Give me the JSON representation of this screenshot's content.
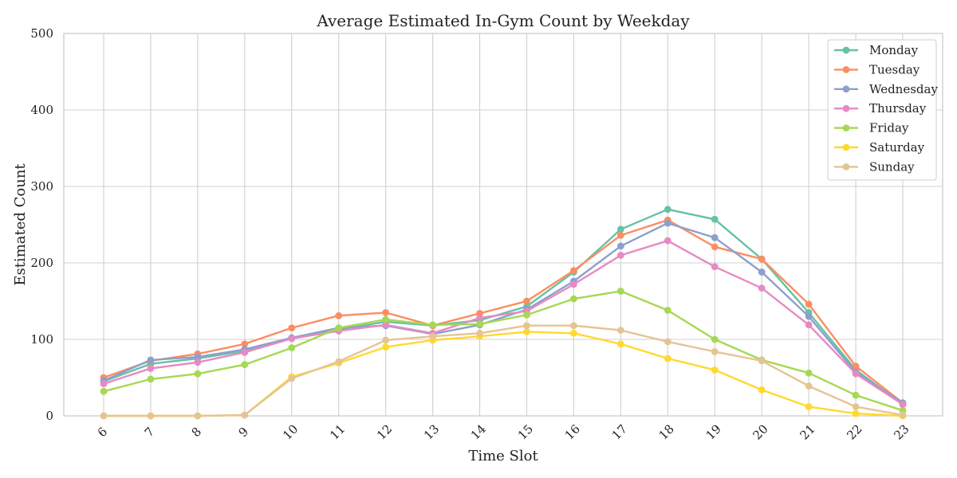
{
  "chart_data": {
    "type": "line",
    "title": "Average Estimated In-Gym Count by Weekday",
    "xlabel": "Time Slot",
    "ylabel": "Estimated Count",
    "x": [
      "6",
      "7",
      "8",
      "9",
      "10",
      "11",
      "12",
      "13",
      "14",
      "15",
      "16",
      "17",
      "18",
      "19",
      "20",
      "21",
      "22",
      "23"
    ],
    "ylim": [
      0,
      500
    ],
    "yticks": [
      "0",
      "100",
      "200",
      "300",
      "400",
      "500"
    ],
    "grid": true,
    "legend_position": "top-right",
    "series": [
      {
        "name": "Monday",
        "color": "#66c2a5",
        "values": [
          45,
          68,
          75,
          85,
          102,
          113,
          123,
          118,
          125,
          143,
          188,
          244,
          270,
          257,
          205,
          135,
          60,
          15
        ]
      },
      {
        "name": "Tuesday",
        "color": "#fc8d62",
        "values": [
          50,
          72,
          81,
          94,
          115,
          131,
          135,
          118,
          134,
          150,
          190,
          236,
          256,
          221,
          205,
          146,
          65,
          17
        ]
      },
      {
        "name": "Wednesday",
        "color": "#8da0cb",
        "values": [
          46,
          73,
          77,
          87,
          102,
          115,
          118,
          107,
          119,
          139,
          176,
          222,
          252,
          233,
          188,
          130,
          57,
          17
        ]
      },
      {
        "name": "Thursday",
        "color": "#e78ac3",
        "values": [
          42,
          62,
          70,
          83,
          101,
          111,
          119,
          108,
          128,
          137,
          172,
          210,
          229,
          195,
          167,
          119,
          55,
          15
        ]
      },
      {
        "name": "Friday",
        "color": "#a6d854",
        "values": [
          32,
          48,
          55,
          67,
          89,
          115,
          126,
          119,
          120,
          132,
          153,
          163,
          138,
          100,
          73,
          56,
          27,
          7
        ]
      },
      {
        "name": "Saturday",
        "color": "#ffd92f",
        "values": [
          0,
          0,
          0,
          1,
          51,
          69,
          90,
          99,
          104,
          110,
          108,
          94,
          75,
          60,
          34,
          12,
          3,
          0
        ]
      },
      {
        "name": "Sunday",
        "color": "#e5c494",
        "values": [
          0,
          0,
          0,
          1,
          49,
          71,
          99,
          104,
          108,
          118,
          118,
          112,
          97,
          84,
          72,
          39,
          12,
          1
        ]
      }
    ]
  }
}
